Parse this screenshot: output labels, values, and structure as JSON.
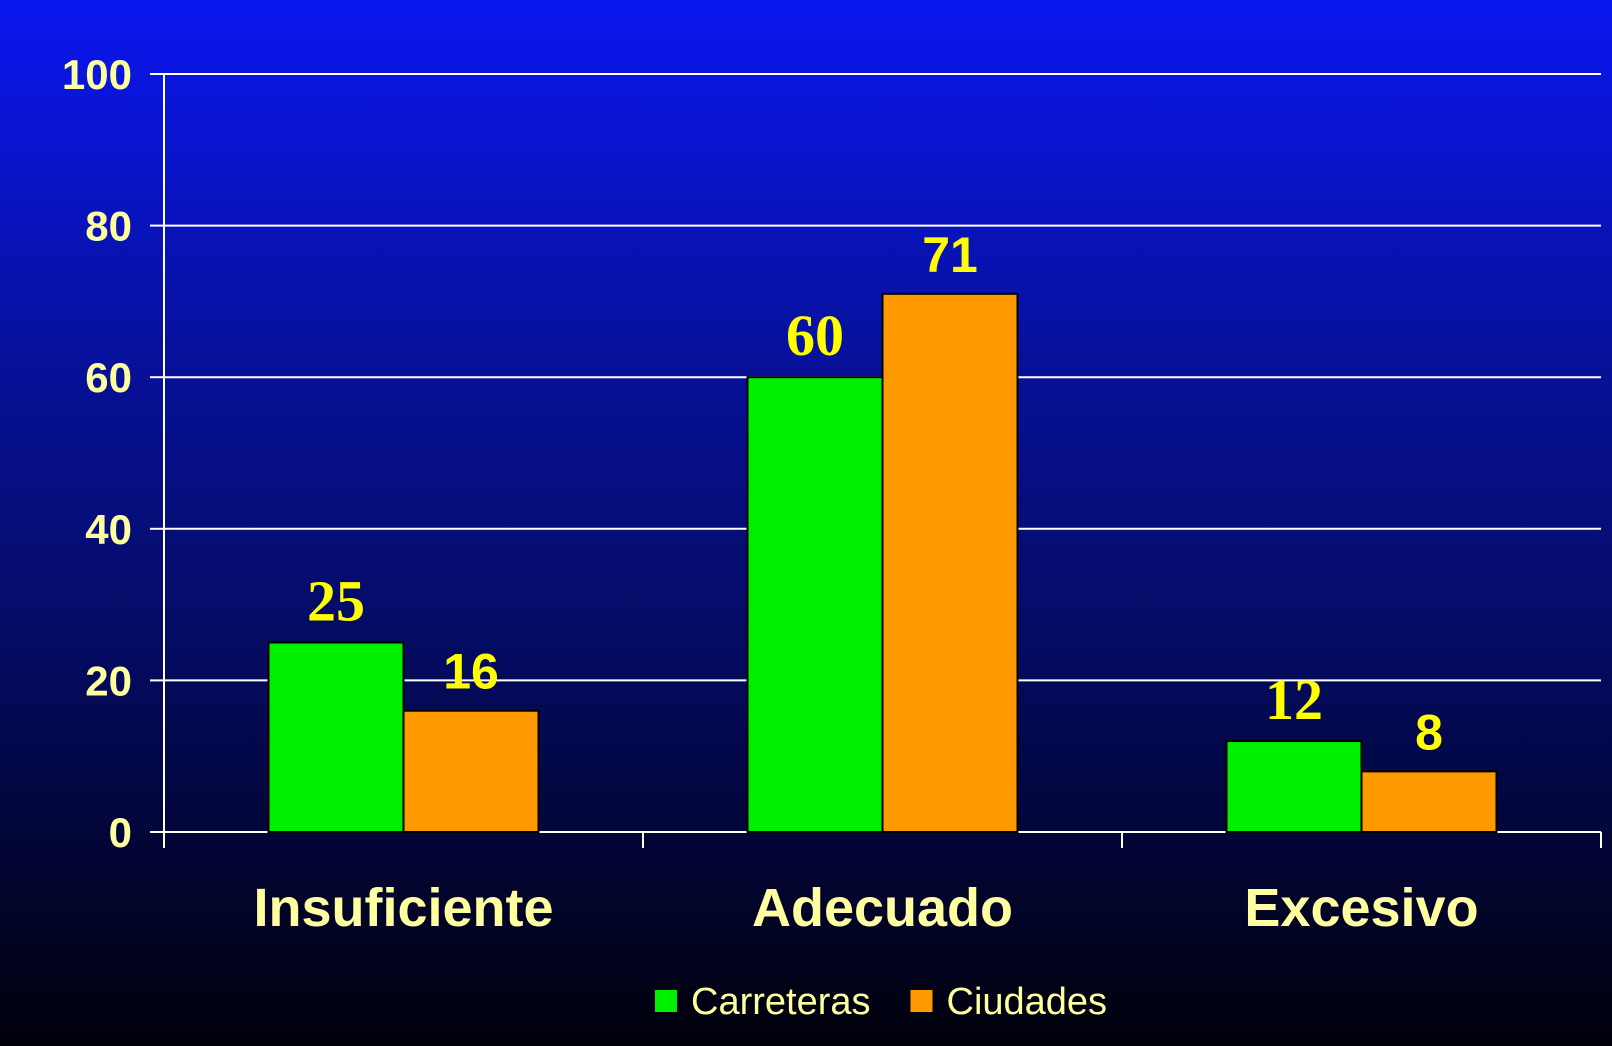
{
  "chart_data": {
    "type": "bar",
    "categories": [
      "Insuficiente",
      "Adecuado",
      "Excesivo"
    ],
    "series": [
      {
        "name": "Carreteras",
        "values": [
          25,
          60,
          12
        ],
        "color": "#00ee00"
      },
      {
        "name": "Ciudades",
        "values": [
          16,
          71,
          8
        ],
        "color": "#ff9900"
      }
    ],
    "ylim": [
      0,
      100
    ],
    "yticks": [
      0,
      20,
      40,
      60,
      80,
      100
    ],
    "grid": true,
    "legend": "bottom",
    "colors": {
      "text": "#ffffa0",
      "data_label": "#ffff00",
      "gridline": "#ffffff"
    }
  }
}
